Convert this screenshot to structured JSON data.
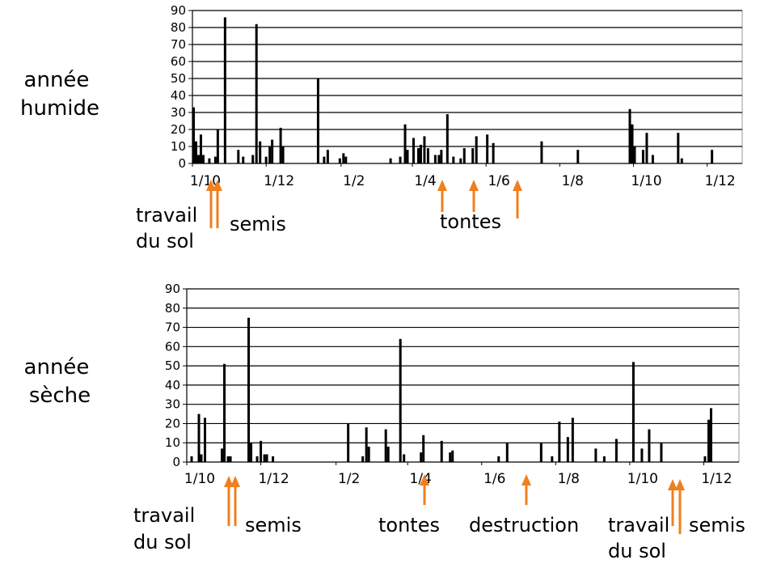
{
  "colors": {
    "bars": "#000000",
    "grid": "#000000",
    "frame": "#999999",
    "arrow": "#f07f1e"
  },
  "chart_data": [
    {
      "type": "bar",
      "row_label": [
        "année",
        "humide"
      ],
      "ylim": [
        0,
        90
      ],
      "yticks": [
        0,
        10,
        20,
        30,
        40,
        50,
        60,
        70,
        80,
        90
      ],
      "grid": true,
      "x_tick_labels": [
        "1/10",
        "1/12",
        "1/2",
        "1/4",
        "1/6",
        "1/8",
        "1/10",
        "1/12"
      ],
      "x_unit": "day index from 1/10",
      "x_range": [
        0,
        455
      ],
      "x_tick_positions": [
        0,
        61,
        123,
        182,
        243,
        304,
        365,
        426
      ],
      "bars": [
        {
          "x": 1,
          "y": 33
        },
        {
          "x": 3,
          "y": 13
        },
        {
          "x": 5,
          "y": 5
        },
        {
          "x": 7,
          "y": 17
        },
        {
          "x": 9,
          "y": 5
        },
        {
          "x": 14,
          "y": 3
        },
        {
          "x": 19,
          "y": 4
        },
        {
          "x": 21,
          "y": 20
        },
        {
          "x": 27,
          "y": 86
        },
        {
          "x": 38,
          "y": 8
        },
        {
          "x": 42,
          "y": 4
        },
        {
          "x": 50,
          "y": 5
        },
        {
          "x": 53,
          "y": 82
        },
        {
          "x": 56,
          "y": 13
        },
        {
          "x": 61,
          "y": 4
        },
        {
          "x": 64,
          "y": 10
        },
        {
          "x": 66,
          "y": 14
        },
        {
          "x": 73,
          "y": 21
        },
        {
          "x": 75,
          "y": 10
        },
        {
          "x": 104,
          "y": 50
        },
        {
          "x": 109,
          "y": 4
        },
        {
          "x": 112,
          "y": 8
        },
        {
          "x": 122,
          "y": 3
        },
        {
          "x": 125,
          "y": 6
        },
        {
          "x": 127,
          "y": 4
        },
        {
          "x": 164,
          "y": 3
        },
        {
          "x": 172,
          "y": 4
        },
        {
          "x": 176,
          "y": 23
        },
        {
          "x": 178,
          "y": 8
        },
        {
          "x": 183,
          "y": 15
        },
        {
          "x": 187,
          "y": 9
        },
        {
          "x": 189,
          "y": 11
        },
        {
          "x": 192,
          "y": 16
        },
        {
          "x": 195,
          "y": 9
        },
        {
          "x": 201,
          "y": 5
        },
        {
          "x": 204,
          "y": 5
        },
        {
          "x": 206,
          "y": 8
        },
        {
          "x": 211,
          "y": 29
        },
        {
          "x": 216,
          "y": 4
        },
        {
          "x": 222,
          "y": 3
        },
        {
          "x": 225,
          "y": 9
        },
        {
          "x": 232,
          "y": 9
        },
        {
          "x": 235,
          "y": 16
        },
        {
          "x": 244,
          "y": 17
        },
        {
          "x": 249,
          "y": 12
        },
        {
          "x": 289,
          "y": 13
        },
        {
          "x": 319,
          "y": 8
        },
        {
          "x": 362,
          "y": 32
        },
        {
          "x": 364,
          "y": 23
        },
        {
          "x": 366,
          "y": 10
        },
        {
          "x": 373,
          "y": 8
        },
        {
          "x": 376,
          "y": 18
        },
        {
          "x": 381,
          "y": 5
        },
        {
          "x": 402,
          "y": 18
        },
        {
          "x": 405,
          "y": 3
        },
        {
          "x": 430,
          "y": 8
        }
      ]
    },
    {
      "type": "bar",
      "row_label": [
        "année",
        "sèche"
      ],
      "ylim": [
        0,
        90
      ],
      "yticks": [
        0,
        10,
        20,
        30,
        40,
        50,
        60,
        70,
        80,
        90
      ],
      "grid": true,
      "x_tick_labels": [
        "1/10",
        "1/12",
        "1/2",
        "1/4",
        "1/6",
        "1/8",
        "1/10",
        "1/12"
      ],
      "x_unit": "day index from 1/10",
      "x_range": [
        0,
        455
      ],
      "x_tick_positions": [
        0,
        61,
        123,
        182,
        243,
        304,
        365,
        426
      ],
      "bars": [
        {
          "x": 4,
          "y": 3
        },
        {
          "x": 10,
          "y": 25
        },
        {
          "x": 12,
          "y": 4
        },
        {
          "x": 15,
          "y": 23
        },
        {
          "x": 29,
          "y": 7
        },
        {
          "x": 31,
          "y": 51
        },
        {
          "x": 34,
          "y": 3
        },
        {
          "x": 36,
          "y": 3
        },
        {
          "x": 51,
          "y": 75
        },
        {
          "x": 53,
          "y": 10
        },
        {
          "x": 58,
          "y": 3
        },
        {
          "x": 61,
          "y": 11
        },
        {
          "x": 64,
          "y": 4
        },
        {
          "x": 66,
          "y": 4
        },
        {
          "x": 71,
          "y": 3
        },
        {
          "x": 133,
          "y": 20
        },
        {
          "x": 145,
          "y": 3
        },
        {
          "x": 148,
          "y": 18
        },
        {
          "x": 150,
          "y": 8
        },
        {
          "x": 164,
          "y": 17
        },
        {
          "x": 166,
          "y": 8
        },
        {
          "x": 176,
          "y": 64
        },
        {
          "x": 179,
          "y": 4
        },
        {
          "x": 193,
          "y": 5
        },
        {
          "x": 195,
          "y": 14
        },
        {
          "x": 210,
          "y": 11
        },
        {
          "x": 217,
          "y": 5
        },
        {
          "x": 219,
          "y": 6
        },
        {
          "x": 257,
          "y": 3
        },
        {
          "x": 264,
          "y": 10
        },
        {
          "x": 292,
          "y": 10
        },
        {
          "x": 301,
          "y": 3
        },
        {
          "x": 307,
          "y": 21
        },
        {
          "x": 314,
          "y": 13
        },
        {
          "x": 318,
          "y": 23
        },
        {
          "x": 337,
          "y": 7
        },
        {
          "x": 344,
          "y": 3
        },
        {
          "x": 354,
          "y": 12
        },
        {
          "x": 368,
          "y": 52
        },
        {
          "x": 375,
          "y": 7
        },
        {
          "x": 381,
          "y": 17
        },
        {
          "x": 391,
          "y": 10
        },
        {
          "x": 427,
          "y": 3
        },
        {
          "x": 430,
          "y": 22
        },
        {
          "x": 432,
          "y": 28
        }
      ]
    }
  ],
  "annotations": {
    "chart1": {
      "travail": "travail",
      "du_sol": "du sol",
      "semis": "semis",
      "tontes": "tontes"
    },
    "chart2": {
      "travail": "travail",
      "du_sol": "du sol",
      "semis": "semis",
      "tontes": "tontes",
      "destruction": "destruction",
      "travail2": "travail",
      "du_sol2": "du sol",
      "semis2": "semis"
    }
  }
}
